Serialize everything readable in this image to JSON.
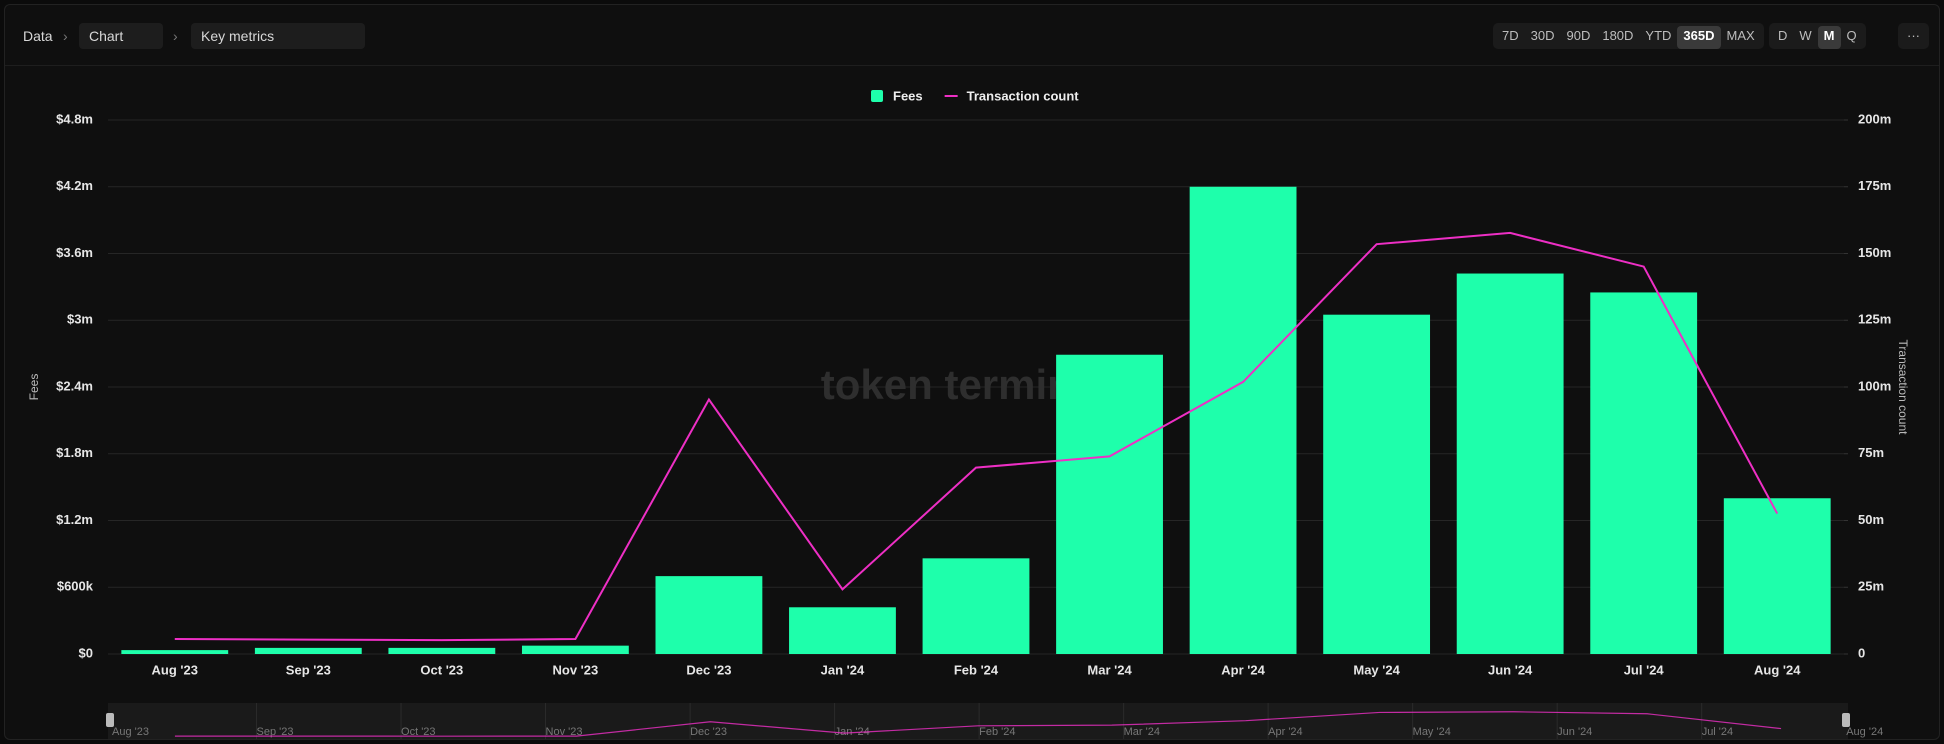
{
  "breadcrumb": {
    "root": "Data",
    "view": "Chart",
    "metric": "Key metrics"
  },
  "toolbar": {
    "ranges": [
      {
        "label": "7D",
        "active": false
      },
      {
        "label": "30D",
        "active": false
      },
      {
        "label": "90D",
        "active": false
      },
      {
        "label": "180D",
        "active": false
      },
      {
        "label": "YTD",
        "active": false
      },
      {
        "label": "365D",
        "active": true
      },
      {
        "label": "MAX",
        "active": false
      }
    ],
    "granularity": [
      {
        "label": "D",
        "active": false
      },
      {
        "label": "W",
        "active": false
      },
      {
        "label": "M",
        "active": true
      },
      {
        "label": "Q",
        "active": false
      }
    ],
    "more": "···"
  },
  "watermark": "token terminal_",
  "chart_data": {
    "type": "bar",
    "categories": [
      "Aug '23",
      "Sep '23",
      "Oct '23",
      "Nov '23",
      "Dec '23",
      "Jan '24",
      "Feb '24",
      "Mar '24",
      "Apr '24",
      "May '24",
      "Jun '24",
      "Jul '24",
      "Aug '24"
    ],
    "series": [
      {
        "name": "Fees",
        "type": "bar",
        "color": "#1effab",
        "values": [
          35000,
          55000,
          55000,
          75000,
          700000,
          420000,
          860000,
          2690000,
          4200000,
          3050000,
          3420000,
          3250000,
          1400000
        ]
      },
      {
        "name": "Transaction count",
        "type": "line",
        "axis": "y2",
        "color": "#ee2fc5",
        "values": [
          5600000,
          5400000,
          5200000,
          5600000,
          95300000,
          24200000,
          69800000,
          74000000,
          101900000,
          153500000,
          157700000,
          145100000,
          52600000
        ]
      }
    ],
    "y_label": "Fees",
    "y2_label": "Transaction count",
    "ylim": [
      0,
      4800000
    ],
    "yticks": [
      {
        "value": 0,
        "label": "$0"
      },
      {
        "value": 600000,
        "label": "$600k"
      },
      {
        "value": 1200000,
        "label": "$1.2m"
      },
      {
        "value": 1800000,
        "label": "$1.8m"
      },
      {
        "value": 2400000,
        "label": "$2.4m"
      },
      {
        "value": 3000000,
        "label": "$3m"
      },
      {
        "value": 3600000,
        "label": "$3.6m"
      },
      {
        "value": 4200000,
        "label": "$4.2m"
      },
      {
        "value": 4800000,
        "label": "$4.8m"
      }
    ],
    "y2lim": [
      0,
      200000000
    ],
    "y2ticks": [
      0,
      {
        "value": 25000000,
        "label": "25m"
      },
      {
        "value": 50000000,
        "label": "50m"
      },
      {
        "value": 75000000,
        "label": "75m"
      },
      {
        "value": 100000000,
        "label": "100m"
      },
      {
        "value": 125000000,
        "label": "125m"
      },
      {
        "value": 150000000,
        "label": "150m"
      },
      {
        "value": 175000000,
        "label": "175m"
      },
      {
        "value": 200000000,
        "label": "200m"
      }
    ],
    "grid": true,
    "legend": "top",
    "navigator_labels": [
      "Aug '23",
      "Sep '23",
      "Oct '23",
      "Nov '23",
      "Dec '23",
      "Jan '24",
      "Feb '24",
      "Mar '24",
      "Apr '24",
      "May '24",
      "Jun '24",
      "Jul '24",
      "Aug '24"
    ]
  }
}
